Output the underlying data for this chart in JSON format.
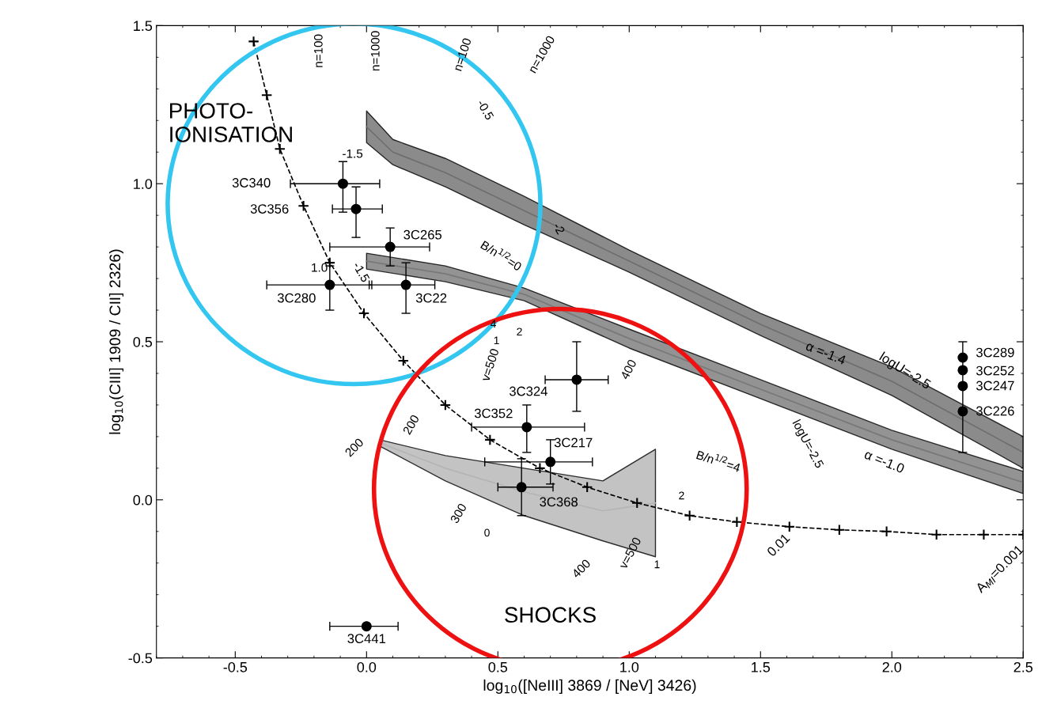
{
  "chart_data": {
    "type": "scatter",
    "xlabel": "log$_{10}$([NeIII] 3869 / [NeV] 3426)",
    "ylabel": "log$_{10}$(CIII] 1909 / CII] 2326)",
    "xlim": [
      -0.8,
      2.5
    ],
    "ylim": [
      -0.5,
      1.5
    ],
    "xticks": [
      -0.5,
      {
        "value": 0,
        "label": "0.0"
      },
      0.5,
      {
        "value": 1,
        "label": "1.0"
      },
      1.5,
      {
        "value": 2,
        "label": "2.0"
      },
      2.5
    ],
    "yticks": [
      -0.5,
      {
        "value": 0,
        "label": "0.0"
      },
      0.5,
      {
        "value": 1,
        "label": "1.0"
      },
      1.5
    ],
    "grid": false,
    "legend": false,
    "series": [
      {
        "type": "line",
        "color": "#6e6e6e",
        "x": [
          0.0,
          0.1,
          0.3,
          0.6,
          1.0,
          1.5,
          2.0,
          2.5
        ],
        "values": [
          1.18,
          1.1,
          1.035,
          0.915,
          0.755,
          0.555,
          0.375,
          0.15
        ],
        "lower": [
          1.13,
          1.06,
          0.99,
          0.87,
          0.72,
          0.52,
          0.33,
          0.1
        ],
        "upper": [
          1.23,
          1.14,
          1.08,
          0.96,
          0.79,
          0.59,
          0.42,
          0.2
        ]
      },
      {
        "type": "line",
        "color": "#787878",
        "x": [
          0.0,
          0.3,
          0.6,
          1.0,
          1.5,
          2.0,
          2.5
        ],
        "values": [
          0.755,
          0.715,
          0.65,
          0.51,
          0.35,
          0.19,
          0.055
        ],
        "lower": [
          0.73,
          0.69,
          0.63,
          0.48,
          0.32,
          0.16,
          0.02
        ],
        "upper": [
          0.78,
          0.74,
          0.67,
          0.54,
          0.38,
          0.22,
          0.09
        ]
      },
      {
        "type": "line",
        "color": "#b4b4b4",
        "x": [
          0.05,
          0.3,
          0.6,
          0.9,
          1.1
        ],
        "values": [
          0.18,
          0.1,
          0.025,
          -0.035,
          -0.01
        ],
        "lower": [
          0.17,
          0.06,
          -0.05,
          -0.13,
          -0.18
        ],
        "upper": [
          0.19,
          0.14,
          0.1,
          0.06,
          0.16
        ]
      },
      {
        "type": "line",
        "color": "#000000",
        "line_style": "dashed",
        "marker": "cross",
        "x": [
          -0.43,
          -0.38,
          -0.33,
          -0.24,
          -0.14,
          -0.01,
          0.14,
          0.3,
          0.47,
          0.66,
          0.84,
          1.03,
          1.23,
          1.41,
          1.61,
          1.8,
          1.98,
          2.17,
          2.35,
          2.5
        ],
        "values": [
          1.45,
          1.28,
          1.11,
          0.93,
          0.75,
          0.59,
          0.44,
          0.3,
          0.19,
          0.1,
          0.04,
          -0.01,
          -0.05,
          -0.07,
          -0.085,
          -0.095,
          -0.1,
          -0.11,
          -0.11,
          -0.11
        ]
      },
      {
        "color": "#000000",
        "marker": "circle",
        "x": [
          -0.09,
          -0.04,
          0.09,
          -0.14,
          0.15,
          0.8,
          0.61,
          0.7,
          0.59,
          0.0,
          2.27,
          2.27,
          2.27,
          2.27
        ],
        "values": [
          1.0,
          0.92,
          0.8,
          0.68,
          0.68,
          0.38,
          0.23,
          0.12,
          0.04,
          -0.4,
          0.45,
          0.41,
          0.36,
          0.28
        ],
        "errors": [
          [
            0.91,
            1.07
          ],
          [
            0.83,
            0.99
          ],
          [
            0.74,
            0.86
          ],
          [
            0.6,
            0.74
          ],
          [
            0.59,
            0.75
          ],
          [
            0.28,
            0.5
          ],
          [
            0.15,
            0.3
          ],
          [
            0.05,
            0.19
          ],
          [
            -0.05,
            0.13
          ],
          null,
          null,
          null,
          null,
          [
            0.15,
            0.5
          ]
        ],
        "xerrors": [
          [
            -0.29,
            0.05
          ],
          [
            -0.13,
            0.06
          ],
          [
            -0.14,
            0.24
          ],
          [
            -0.38,
            0.02
          ],
          [
            0.01,
            0.26
          ],
          [
            0.68,
            0.92
          ],
          [
            0.4,
            0.83
          ],
          [
            0.45,
            0.86
          ],
          [
            0.5,
            0.71
          ],
          [
            -0.14,
            0.12
          ],
          null,
          null,
          null,
          null
        ]
      }
    ],
    "annotations": [
      {
        "text": "3C265",
        "x": 0.09,
        "y": 0.8
      },
      {
        "text": "3C280",
        "x": -0.14,
        "y": 0.68
      },
      {
        "text": "3C22",
        "x": 0.15,
        "y": 0.68
      },
      {
        "text": "3C324",
        "x": 0.8,
        "y": 0.38
      },
      {
        "text": "3C352",
        "x": 0.61,
        "y": 0.23
      },
      {
        "text": "3C217",
        "x": 0.7,
        "y": 0.12
      },
      {
        "text": "3C368",
        "x": 0.59,
        "y": 0.04
      },
      {
        "text": "3C441",
        "x": 0.0,
        "y": -0.4
      },
      {
        "text": "3C289",
        "x": 2.27,
        "y": 0.45
      },
      {
        "text": "3C252",
        "x": 2.27,
        "y": 0.41
      },
      {
        "text": "3C247",
        "x": 2.27,
        "y": 0.36
      },
      {
        "text": "3C226",
        "x": 2.27,
        "y": 0.28
      },
      {
        "text": "0.01",
        "x": 1.61,
        "y": -0.085
      },
      {
        "text": "A$_{MI}$=0.001",
        "x": 2.35,
        "y": -0.11
      },
      "3C340",
      "3C356",
      "PHOTO-\nIONISATION",
      "SHOCKS",
      "α =-1.4",
      "α =-1.0",
      "logU=-2.5",
      "logU=-2.5",
      "n=100",
      "n=1000",
      "n=100",
      "n=1000",
      "-1.5",
      "-0.5",
      "-2",
      "1.0",
      "-1.5",
      "B/n$^{1/2}$=0",
      "B/n$^{1/2}$=4",
      "v=500",
      "v=500",
      "200",
      "200",
      "300",
      "400",
      "400",
      "4",
      "2",
      "1",
      "0",
      "1",
      "2"
    ]
  }
}
